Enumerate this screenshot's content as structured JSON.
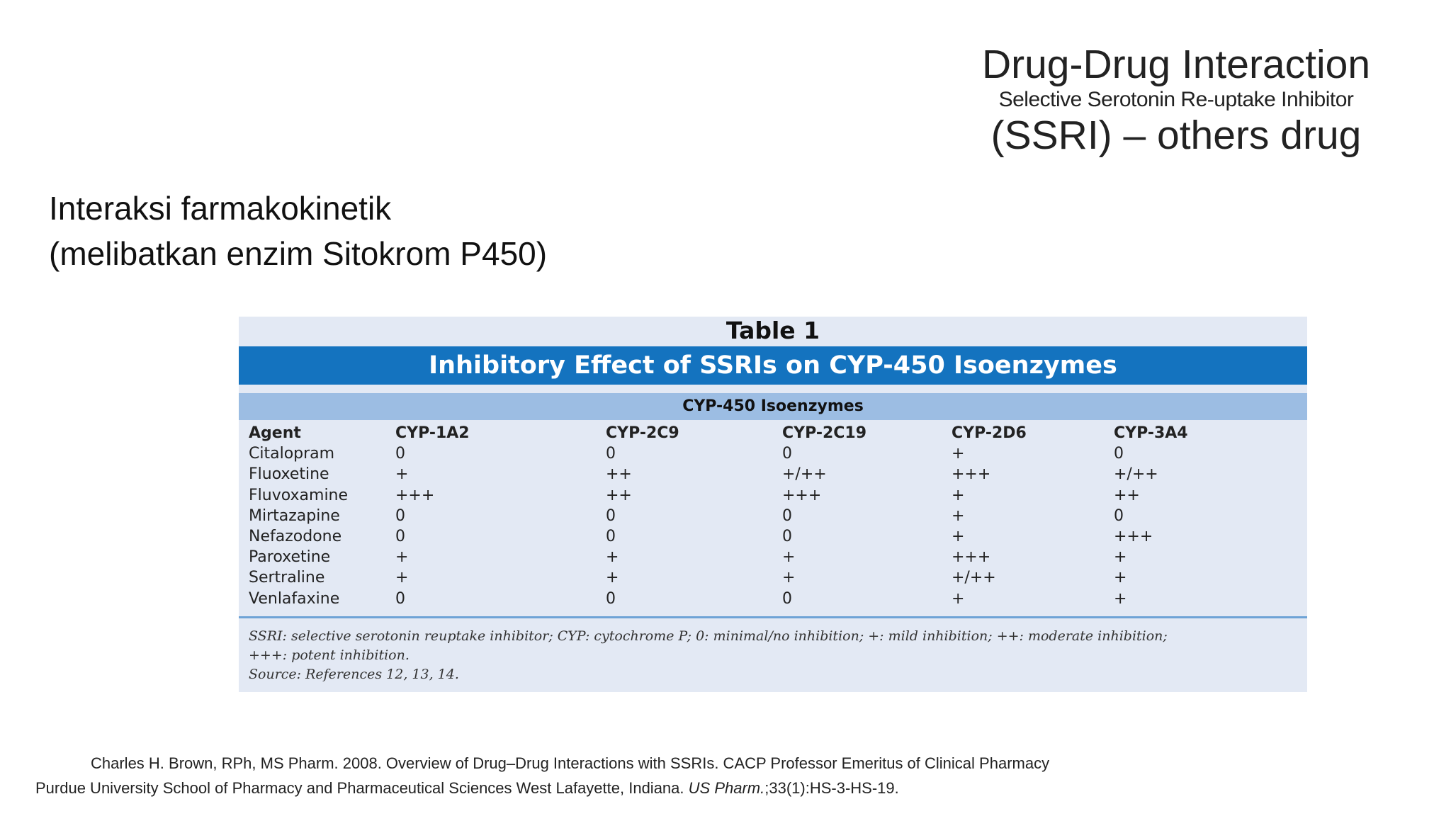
{
  "title": {
    "main": "Drug-Drug Interaction",
    "sub": "Selective Serotonin Re-uptake Inhibitor",
    "tail": "(SSRI) – others drug"
  },
  "heading": {
    "line1": "Interaksi farmakokinetik",
    "line2": "(melibatkan enzim Sitokrom P450)"
  },
  "table": {
    "caption": "Table 1",
    "title": "Inhibitory Effect of SSRIs on CYP-450 Isoenzymes",
    "group_header": "CYP-450 Isoenzymes",
    "columns": [
      "Agent",
      "CYP-1A2",
      "CYP-2C9",
      "CYP-2C19",
      "CYP-2D6",
      "CYP-3A4"
    ],
    "rows": [
      [
        "Citalopram",
        "0",
        "0",
        "0",
        "+",
        "0"
      ],
      [
        "Fluoxetine",
        "+",
        "++",
        "+/++",
        "+++",
        "+/++"
      ],
      [
        "Fluvoxamine",
        "+++",
        "++",
        "+++",
        "+",
        "++"
      ],
      [
        "Mirtazapine",
        "0",
        "0",
        "0",
        "+",
        "0"
      ],
      [
        "Nefazodone",
        "0",
        "0",
        "0",
        "+",
        "+++"
      ],
      [
        "Paroxetine",
        "+",
        "+",
        "+",
        "+++",
        "+"
      ],
      [
        "Sertraline",
        "+",
        "+",
        "+",
        "+/++",
        "+"
      ],
      [
        "Venlafaxine",
        "0",
        "0",
        "0",
        "+",
        "+"
      ]
    ],
    "footnote": {
      "line1": "SSRI: selective serotonin reuptake inhibitor; CYP: cytochrome P; 0: minimal/no inhibition; +: mild inhibition; ++: moderate inhibition;",
      "line2": "+++: potent inhibition.",
      "line3": "Source: References 12, 13, 14."
    }
  },
  "citation": {
    "line1": "Charles H. Brown, RPh, MS Pharm. 2008. Overview of Drug–Drug Interactions with SSRIs. CACP Professor Emeritus of Clinical Pharmacy",
    "line2_a": "Purdue University School of Pharmacy and Pharmaceutical Sciences West Lafayette, Indiana. ",
    "line2_journal": "US Pharm.",
    "line2_b": ";33(1):HS-3-HS-19."
  },
  "colors": {
    "title_bar": "#1473bf",
    "group_header": "#9cbde3",
    "table_background": "#e3e9f4",
    "rule": "#6ea3d6"
  }
}
